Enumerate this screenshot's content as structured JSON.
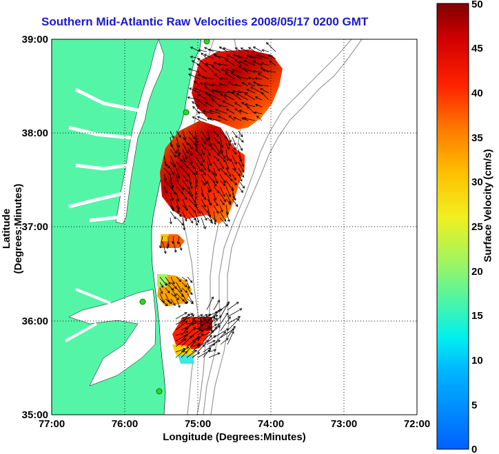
{
  "title": "Southern Mid-Atlantic Raw Velocities 2008/05/17 0200 GMT",
  "axes": {
    "xlabel": "Longitude (Degrees:Minutes)",
    "ylabel": "Latitude (Degrees:Minutes)",
    "x_ticks": [
      "77:00",
      "76:00",
      "75:00",
      "74:00",
      "73:00",
      "72:00"
    ],
    "y_ticks": [
      "39:00",
      "38:00",
      "37:00",
      "36:00",
      "35:00"
    ],
    "xlim": [
      -77,
      -72
    ],
    "ylim": [
      35,
      39
    ],
    "grid": "dotted"
  },
  "colorbar": {
    "label": "Surface Velocity (cm/s)",
    "ticks": [
      "50",
      "45",
      "40",
      "35",
      "30",
      "25",
      "20",
      "15",
      "10",
      "5",
      "0"
    ],
    "min": 0,
    "max": 50,
    "colormap": "jet"
  },
  "colors": {
    "land": "#55f5a8",
    "title": "#1818d0",
    "bathymetry": "#999999",
    "station": "#22dd22"
  }
}
